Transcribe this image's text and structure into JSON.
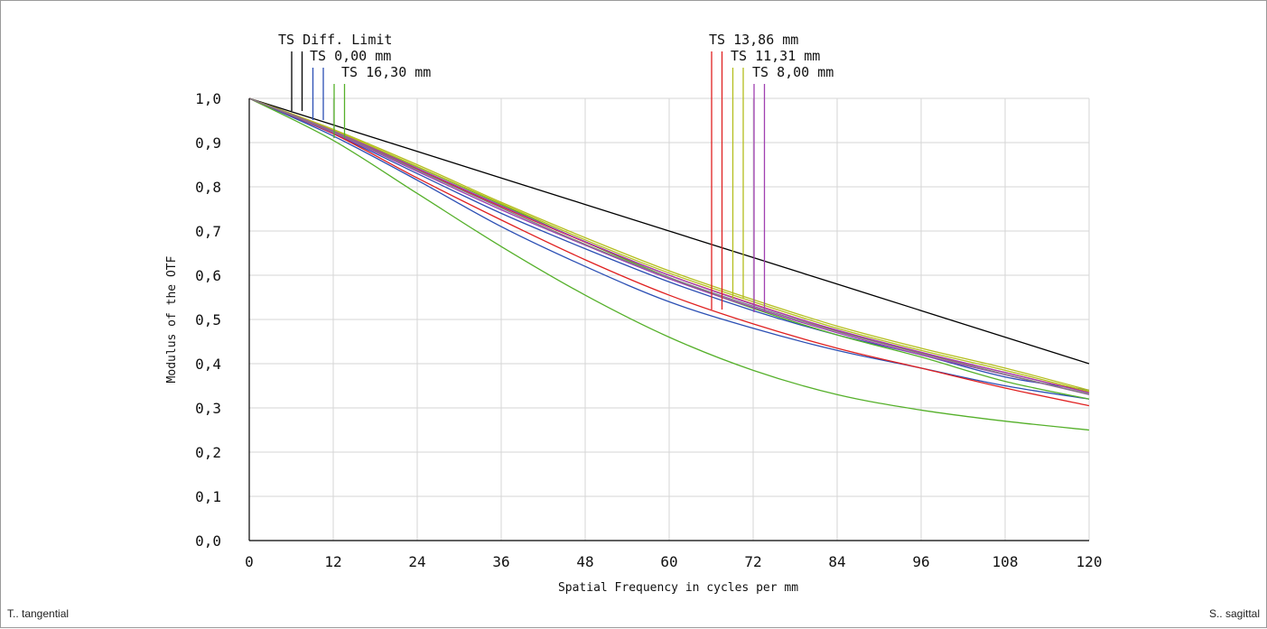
{
  "chart_data": {
    "type": "line",
    "xlabel": "Spatial Frequency in cycles per mm",
    "ylabel": "Modulus of the OTF",
    "xlim": [
      0,
      120
    ],
    "ylim": [
      0,
      1.0
    ],
    "x_ticks": [
      "0",
      "12",
      "24",
      "36",
      "48",
      "60",
      "72",
      "84",
      "96",
      "108",
      "120"
    ],
    "y_ticks": [
      "0,0",
      "0,1",
      "0,2",
      "0,3",
      "0,4",
      "0,5",
      "0,6",
      "0,7",
      "0,8",
      "0,9",
      "1,0"
    ],
    "grid": true,
    "x": [
      0,
      12,
      24,
      36,
      48,
      60,
      72,
      84,
      96,
      108,
      120
    ],
    "legend": {
      "left": [
        {
          "label": "TS Diff. Limit",
          "colors": [
            "#000000",
            "#000000"
          ]
        },
        {
          "label": "TS 0,00 mm",
          "colors": [
            "#2b4fb4",
            "#2b4fb4"
          ]
        },
        {
          "label": "TS 16,30 mm",
          "colors": [
            "#55b02a",
            "#55b02a"
          ]
        }
      ],
      "right": [
        {
          "label": "TS 13,86 mm",
          "colors": [
            "#e02020",
            "#e02020"
          ]
        },
        {
          "label": "TS 11,31 mm",
          "colors": [
            "#b4be1e",
            "#b4be1e"
          ]
        },
        {
          "label": "TS 8,00 mm",
          "colors": [
            "#a040b0",
            "#a040b0"
          ]
        }
      ]
    },
    "series": [
      {
        "name": "TS Diff. Limit",
        "color": "#000000",
        "values": [
          1.0,
          0.94,
          0.88,
          0.82,
          0.76,
          0.7,
          0.64,
          0.58,
          0.52,
          0.46,
          0.4
        ]
      },
      {
        "name": "TS 0,00 mm",
        "color": "#2b4fb4",
        "values": [
          1.0,
          0.915,
          0.815,
          0.71,
          0.62,
          0.54,
          0.48,
          0.43,
          0.39,
          0.35,
          0.32
        ]
      },
      {
        "name": "TS 0,00 mm",
        "color": "#2b4fb4",
        "values": [
          1.0,
          0.92,
          0.83,
          0.74,
          0.66,
          0.585,
          0.52,
          0.465,
          0.42,
          0.37,
          0.34
        ]
      },
      {
        "name": "TS 16,30 mm",
        "color": "#55b02a",
        "values": [
          1.0,
          0.905,
          0.785,
          0.665,
          0.555,
          0.46,
          0.385,
          0.33,
          0.295,
          0.27,
          0.25
        ]
      },
      {
        "name": "TS 16,30 mm",
        "color": "#55b02a",
        "values": [
          1.0,
          0.925,
          0.845,
          0.76,
          0.675,
          0.595,
          0.525,
          0.465,
          0.415,
          0.36,
          0.32
        ]
      },
      {
        "name": "TS 13,86 mm",
        "color": "#e02020",
        "values": [
          1.0,
          0.92,
          0.82,
          0.725,
          0.635,
          0.555,
          0.49,
          0.435,
          0.39,
          0.345,
          0.305
        ]
      },
      {
        "name": "TS 13,86 mm",
        "color": "#e02020",
        "values": [
          1.0,
          0.925,
          0.84,
          0.755,
          0.675,
          0.6,
          0.535,
          0.475,
          0.425,
          0.38,
          0.335
        ]
      },
      {
        "name": "TS 11,31 mm",
        "color": "#b4be1e",
        "values": [
          1.0,
          0.93,
          0.85,
          0.765,
          0.685,
          0.61,
          0.545,
          0.485,
          0.435,
          0.39,
          0.34
        ]
      },
      {
        "name": "TS 11,31 mm",
        "color": "#b4be1e",
        "values": [
          1.0,
          0.928,
          0.846,
          0.762,
          0.68,
          0.605,
          0.54,
          0.48,
          0.43,
          0.385,
          0.337
        ]
      },
      {
        "name": "TS 8,00 mm",
        "color": "#a040b0",
        "values": [
          1.0,
          0.922,
          0.835,
          0.748,
          0.668,
          0.592,
          0.527,
          0.47,
          0.42,
          0.375,
          0.33
        ]
      },
      {
        "name": "TS 8,00 mm",
        "color": "#a040b0",
        "values": [
          1.0,
          0.926,
          0.842,
          0.757,
          0.676,
          0.6,
          0.534,
          0.476,
          0.426,
          0.38,
          0.334
        ]
      },
      {
        "name": "",
        "color": "#808080",
        "values": [
          1.0,
          0.924,
          0.838,
          0.752,
          0.67,
          0.595,
          0.53,
          0.473,
          0.423,
          0.376,
          0.331
        ]
      }
    ]
  },
  "footer": {
    "left": "T.. tangential",
    "right": "S.. sagittal"
  }
}
